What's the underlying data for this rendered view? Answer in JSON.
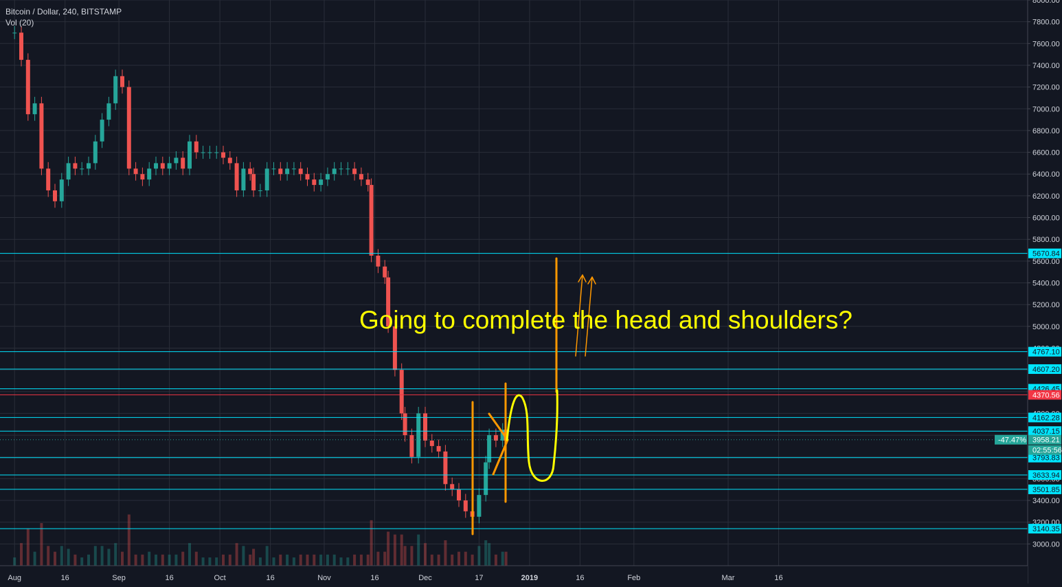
{
  "header": {
    "symbol": "Bitcoin / Dollar, 240, BITSTAMP",
    "indicator": "Vol (20)"
  },
  "annotation": {
    "text": "Going to complete the head and shoulders?"
  },
  "chart_data": {
    "type": "line",
    "style": "candlestick",
    "ylim": [
      2800,
      8000
    ],
    "xlim": [
      "2018-08-01",
      "2019-03-31"
    ],
    "y_ticks": [
      3000,
      3200,
      3400,
      3600,
      3800,
      4000,
      4200,
      4400,
      4600,
      4800,
      5000,
      5200,
      5400,
      5600,
      5800,
      6000,
      6200,
      6400,
      6600,
      6800,
      7000,
      7200,
      7400,
      7600,
      7800,
      8000
    ],
    "y_tick_labels": [
      "3000.00",
      "3200.00",
      "3400.00",
      "3600.00",
      "3800.00",
      "4000.00",
      "4200.00",
      "4400.00",
      "4600.00",
      "4800.00",
      "5000.00",
      "5200.00",
      "5400.00",
      "5600.00",
      "5800.00",
      "6000.00",
      "6200.00",
      "6400.00",
      "6600.00",
      "6800.00",
      "7000.00",
      "7200.00",
      "7400.00",
      "7600.00",
      "7800.00",
      "8000.00"
    ],
    "x_ticks": [
      {
        "date": "2018-08-01",
        "label": "Aug"
      },
      {
        "date": "2018-08-16",
        "label": "16"
      },
      {
        "date": "2018-09-01",
        "label": "Sep"
      },
      {
        "date": "2018-09-16",
        "label": "16"
      },
      {
        "date": "2018-10-01",
        "label": "Oct"
      },
      {
        "date": "2018-10-16",
        "label": "16"
      },
      {
        "date": "2018-11-01",
        "label": "Nov"
      },
      {
        "date": "2018-11-16",
        "label": "16"
      },
      {
        "date": "2018-12-01",
        "label": "Dec"
      },
      {
        "date": "2018-12-17",
        "label": "17"
      },
      {
        "date": "2019-01-01",
        "label": "2019"
      },
      {
        "date": "2019-01-16",
        "label": "16"
      },
      {
        "date": "2019-02-01",
        "label": "Feb"
      },
      {
        "date": "2019-03-01",
        "label": "Mar"
      },
      {
        "date": "2019-03-16",
        "label": "16"
      }
    ],
    "series": [
      {
        "name": "Bitcoin / Dollar",
        "color_up": "#26a69a",
        "color_down": "#ef5350",
        "x": [
          "2018-08-01",
          "2018-08-03",
          "2018-08-05",
          "2018-08-07",
          "2018-08-09",
          "2018-08-11",
          "2018-08-13",
          "2018-08-15",
          "2018-08-17",
          "2018-08-19",
          "2018-08-21",
          "2018-08-23",
          "2018-08-25",
          "2018-08-27",
          "2018-08-29",
          "2018-08-31",
          "2018-09-02",
          "2018-09-04",
          "2018-09-06",
          "2018-09-08",
          "2018-09-10",
          "2018-09-12",
          "2018-09-14",
          "2018-09-16",
          "2018-09-18",
          "2018-09-20",
          "2018-09-22",
          "2018-09-24",
          "2018-09-26",
          "2018-09-28",
          "2018-09-30",
          "2018-10-02",
          "2018-10-04",
          "2018-10-06",
          "2018-10-08",
          "2018-10-10",
          "2018-10-11",
          "2018-10-13",
          "2018-10-15",
          "2018-10-17",
          "2018-10-19",
          "2018-10-21",
          "2018-10-23",
          "2018-10-25",
          "2018-10-27",
          "2018-10-29",
          "2018-10-31",
          "2018-11-02",
          "2018-11-04",
          "2018-11-06",
          "2018-11-08",
          "2018-11-10",
          "2018-11-12",
          "2018-11-14",
          "2018-11-15",
          "2018-11-17",
          "2018-11-19",
          "2018-11-20",
          "2018-11-22",
          "2018-11-24",
          "2018-11-25",
          "2018-11-27",
          "2018-11-29",
          "2018-12-01",
          "2018-12-03",
          "2018-12-05",
          "2018-12-07",
          "2018-12-09",
          "2018-12-11",
          "2018-12-13",
          "2018-12-15",
          "2018-12-17",
          "2018-12-19",
          "2018-12-20",
          "2018-12-22",
          "2018-12-24",
          "2018-12-25"
        ],
        "values": [
          7700,
          7450,
          6950,
          7050,
          6450,
          6250,
          6150,
          6350,
          6500,
          6450,
          6450,
          6500,
          6700,
          6900,
          7050,
          7300,
          7200,
          6450,
          6400,
          6350,
          6450,
          6500,
          6450,
          6500,
          6550,
          6450,
          6700,
          6600,
          6600,
          6600,
          6600,
          6550,
          6500,
          6250,
          6450,
          6400,
          6250,
          6250,
          6450,
          6450,
          6400,
          6450,
          6450,
          6400,
          6350,
          6300,
          6350,
          6400,
          6450,
          6450,
          6450,
          6400,
          6350,
          6300,
          5650,
          5550,
          5450,
          5000,
          4600,
          4200,
          4000,
          3800,
          4200,
          3950,
          3900,
          3850,
          3550,
          3500,
          3400,
          3300,
          3250,
          3450,
          3750,
          4000,
          3950,
          4050,
          3950
        ]
      }
    ],
    "horizontal_levels": [
      {
        "value": 5670.84,
        "label": "5670.84",
        "color": "#00e5ff"
      },
      {
        "value": 4767.1,
        "label": "4767.10",
        "color": "#00e5ff"
      },
      {
        "value": 4607.2,
        "label": "4607.20",
        "color": "#00e5ff"
      },
      {
        "value": 4426.45,
        "label": "4426.45",
        "color": "#00e5ff"
      },
      {
        "value": 4370.56,
        "label": "4370.56",
        "color": "#f23645"
      },
      {
        "value": 4162.28,
        "label": "4162.28",
        "color": "#00e5ff"
      },
      {
        "value": 4037.15,
        "label": "4037.15",
        "color": "#00e5ff"
      },
      {
        "value": 3793.83,
        "label": "3793.83",
        "color": "#00e5ff"
      },
      {
        "value": 3633.94,
        "label": "3633.94",
        "color": "#00e5ff"
      },
      {
        "value": 3501.85,
        "label": "3501.85",
        "color": "#00e5ff"
      },
      {
        "value": 3140.35,
        "label": "3140.35",
        "color": "#00e5ff"
      }
    ],
    "last_price": {
      "value": 3958.21,
      "label": "3958.21",
      "change": "-47.47%",
      "countdown": "02:55:56",
      "color": "#26a69a"
    },
    "colors": {
      "background": "#131722",
      "grid": "#2a2e39",
      "text": "#d1d4dc",
      "drawing_orange": "#ff9800",
      "drawing_yellow": "#ffff00"
    }
  }
}
